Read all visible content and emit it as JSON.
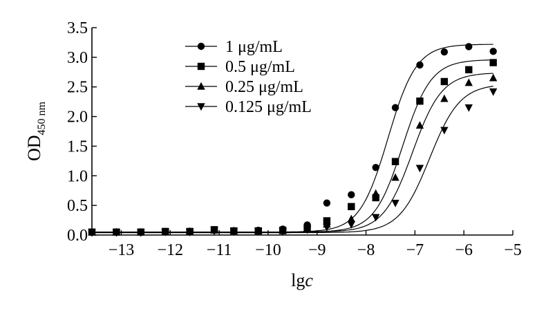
{
  "chart_data": {
    "type": "scatter",
    "xlabel_main": "lg",
    "xlabel_italic": "c",
    "ylabel_main": "OD",
    "ylabel_sub": "450 nm",
    "xlim": [
      -13.6,
      -5
    ],
    "ylim": [
      0,
      3.5
    ],
    "x_ticks": [
      -13,
      -12,
      -11,
      -10,
      -9,
      -8,
      -7,
      -6,
      -5
    ],
    "x_tick_labels": [
      "−13",
      "−12",
      "−11",
      "−10",
      "−9",
      "−8",
      "−7",
      "−6",
      "−5"
    ],
    "y_ticks": [
      0,
      0.5,
      1,
      1.5,
      2,
      2.5,
      3,
      3.5
    ],
    "y_tick_labels": [
      "0.0",
      "0.5",
      "1.0",
      "1.5",
      "2.0",
      "2.5",
      "3.0",
      "3.5"
    ],
    "legend_position": "top-left",
    "x": [
      -13.6,
      -13.1,
      -12.6,
      -12.1,
      -11.6,
      -11.1,
      -10.7,
      -10.2,
      -9.7,
      -9.2,
      -8.8,
      -8.3,
      -7.8,
      -7.4,
      -6.9,
      -6.4,
      -5.9,
      -5.4
    ],
    "series": [
      {
        "name": "1 μg/mL",
        "marker": "circle",
        "values": [
          0.05,
          0.05,
          0.05,
          0.06,
          0.06,
          0.08,
          0.07,
          0.08,
          0.1,
          0.17,
          0.54,
          0.68,
          1.14,
          2.15,
          2.87,
          3.09,
          3.18,
          3.1
        ],
        "fit": {
          "bottom": 0.05,
          "top": 3.22,
          "logEC50": -7.55,
          "hill": 1.5
        }
      },
      {
        "name": "0.5 μg/mL",
        "marker": "square",
        "values": [
          0.05,
          0.05,
          0.05,
          0.06,
          0.06,
          0.09,
          0.07,
          0.07,
          0.08,
          0.12,
          0.24,
          0.48,
          0.63,
          1.24,
          2.26,
          2.59,
          2.79,
          2.91
        ],
        "fit": {
          "bottom": 0.05,
          "top": 2.96,
          "logEC50": -7.25,
          "hill": 1.5
        }
      },
      {
        "name": "0.25 μg/mL",
        "marker": "triangle-up",
        "values": [
          0.05,
          0.05,
          0.05,
          0.05,
          0.06,
          0.08,
          0.07,
          0.07,
          0.07,
          0.11,
          0.18,
          0.27,
          0.7,
          0.97,
          1.85,
          2.3,
          2.57,
          2.65
        ],
        "fit": {
          "bottom": 0.05,
          "top": 2.74,
          "logEC50": -7.05,
          "hill": 1.45
        }
      },
      {
        "name": "0.125 μg/mL",
        "marker": "triangle-down",
        "values": [
          0.04,
          0.04,
          0.04,
          0.05,
          0.05,
          0.07,
          0.06,
          0.06,
          0.06,
          0.09,
          0.13,
          0.18,
          0.3,
          0.54,
          1.13,
          1.77,
          2.15,
          2.42
        ],
        "fit": {
          "bottom": 0.04,
          "top": 2.55,
          "logEC50": -6.7,
          "hill": 1.4
        }
      }
    ]
  }
}
